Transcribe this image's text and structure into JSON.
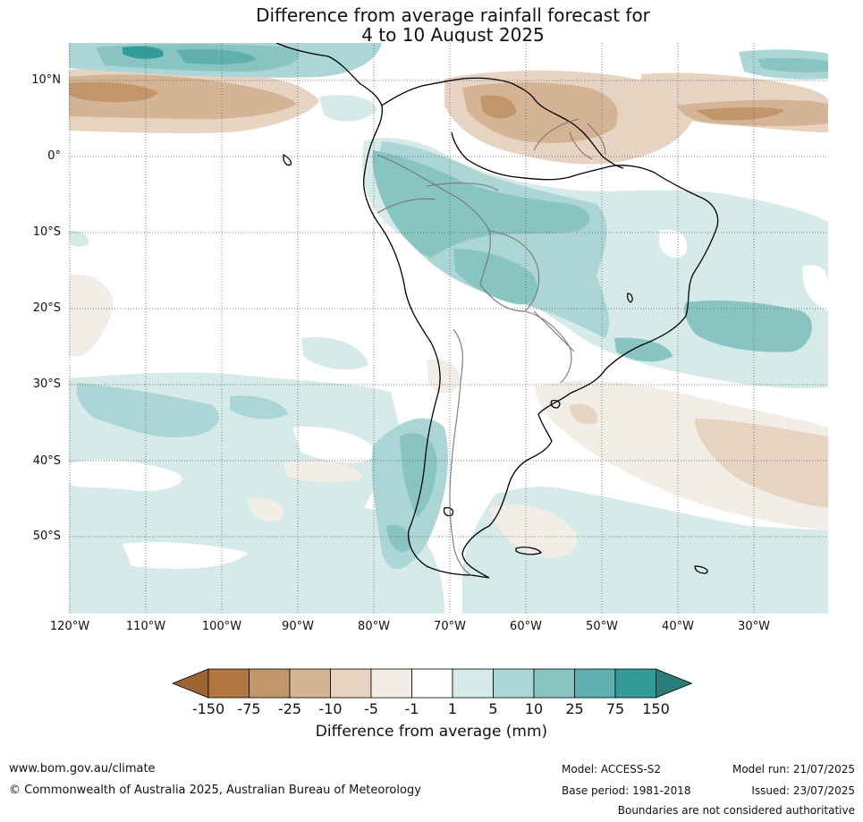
{
  "title_line1": "Difference from average rainfall forecast for",
  "title_line2": "4 to 10 August 2025",
  "lat_labels": [
    "10°N",
    "0°",
    "10°S",
    "20°S",
    "30°S",
    "40°S",
    "50°S"
  ],
  "lon_labels": [
    "120°W",
    "110°W",
    "100°W",
    "90°W",
    "80°W",
    "70°W",
    "60°W",
    "50°W",
    "40°W",
    "30°W"
  ],
  "colorbar": {
    "ticks": [
      "-150",
      "-75",
      "-25",
      "-10",
      "-5",
      "-1",
      "1",
      "5",
      "10",
      "25",
      "75",
      "150"
    ],
    "colors": [
      "#9c6434",
      "#b07840",
      "#c3956b",
      "#d5b495",
      "#e6d3c2",
      "#f3ede7",
      "#ffffff",
      "#d6eae9",
      "#acd6d5",
      "#88c4c2",
      "#5fb0ae",
      "#339b98",
      "#2a7d7b"
    ],
    "label": "Difference from average (mm)"
  },
  "footer": {
    "website": "www.bom.gov.au/climate",
    "copyright": "© Commonwealth of Australia 2025, Australian Bureau of Meteorology",
    "model": "Model: ACCESS-S2",
    "base_period": "Base period: 1981-2018",
    "model_run": "Model run: 21/07/2025",
    "issued": "Issued: 23/07/2025",
    "disclaimer": "Boundaries are not considered authoritative"
  }
}
